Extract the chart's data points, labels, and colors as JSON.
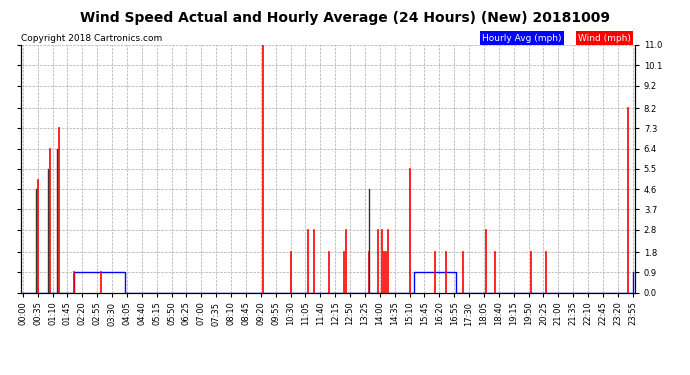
{
  "title": "Wind Speed Actual and Hourly Average (24 Hours) (New) 20181009",
  "copyright": "Copyright 2018 Cartronics.com",
  "yticks": [
    0.0,
    0.9,
    1.8,
    2.8,
    3.7,
    4.6,
    5.5,
    6.4,
    7.3,
    8.2,
    9.2,
    10.1,
    11.0
  ],
  "ymin": 0.0,
  "ymax": 11.0,
  "legend_hourly_label": "Hourly Avg (mph)",
  "legend_wind_label": "Wind (mph)",
  "hourly_color": "#0000FF",
  "wind_color": "#FF0000",
  "dark_color": "#333333",
  "background_color": "#FFFFFF",
  "grid_color": "#AAAAAA",
  "title_fontsize": 10,
  "copyright_fontsize": 6.5,
  "tick_fontsize": 6,
  "hourly_avg": [
    0,
    0,
    0,
    0,
    0,
    0,
    0,
    0,
    0,
    0,
    0,
    0,
    0,
    0,
    0,
    0,
    0,
    0,
    0,
    0,
    0,
    0,
    0,
    0,
    0.9,
    0.9,
    0.9,
    0.9,
    0.9,
    0.9,
    0.9,
    0.9,
    0.9,
    0.9,
    0.9,
    0.9,
    0.9,
    0.9,
    0.9,
    0.9,
    0.9,
    0.9,
    0.9,
    0.9,
    0.9,
    0.9,
    0.9,
    0.9,
    0,
    0,
    0,
    0,
    0,
    0,
    0,
    0,
    0,
    0,
    0,
    0,
    0,
    0,
    0,
    0,
    0,
    0,
    0,
    0,
    0,
    0,
    0,
    0,
    0,
    0,
    0,
    0,
    0,
    0,
    0,
    0,
    0,
    0,
    0,
    0,
    0,
    0,
    0,
    0,
    0,
    0,
    0,
    0,
    0,
    0,
    0,
    0,
    0,
    0,
    0,
    0,
    0,
    0,
    0,
    0,
    0,
    0,
    0,
    0,
    0,
    0,
    0,
    0,
    0,
    0,
    0,
    0,
    0,
    0,
    0,
    0,
    0,
    0,
    0,
    0,
    0,
    0,
    0,
    0,
    0,
    0,
    0,
    0,
    0,
    0,
    0,
    0,
    0,
    0,
    0,
    0,
    0,
    0,
    0,
    0,
    0,
    0,
    0,
    0,
    0,
    0,
    0,
    0,
    0,
    0,
    0,
    0,
    0,
    0,
    0,
    0,
    0,
    0,
    0,
    0,
    0,
    0,
    0,
    0,
    0,
    0,
    0,
    0,
    0,
    0,
    0,
    0,
    0,
    0,
    0,
    0,
    0,
    0,
    0,
    0,
    0.9,
    0.9,
    0.9,
    0.9,
    0.9,
    0.9,
    0.9,
    0.9,
    0.9,
    0.9,
    0.9,
    0.9,
    0.9,
    0.9,
    0.9,
    0.9,
    0.9,
    0.9,
    0.9,
    0.9,
    0,
    0,
    0,
    0,
    0,
    0,
    0,
    0,
    0,
    0,
    0,
    0,
    0,
    0,
    0,
    0,
    0,
    0,
    0,
    0,
    0,
    0,
    0,
    0,
    0,
    0,
    0,
    0,
    0,
    0,
    0,
    0,
    0,
    0,
    0,
    0,
    0,
    0,
    0,
    0,
    0,
    0,
    0,
    0,
    0,
    0,
    0,
    0,
    0,
    0,
    0,
    0,
    0,
    0,
    0,
    0,
    0,
    0,
    0,
    0,
    0,
    0,
    0,
    0,
    0,
    0,
    0,
    0,
    0,
    0,
    0,
    0,
    0,
    0,
    0,
    0,
    0,
    0,
    0,
    0,
    0,
    0,
    0,
    0.9
  ],
  "wind_actual_index": [
    7,
    13,
    17,
    24,
    37,
    113,
    126,
    134,
    137,
    144,
    151,
    152,
    163,
    167,
    169,
    170,
    171,
    172,
    182,
    194,
    199,
    207,
    218,
    222,
    239,
    246,
    285
  ],
  "wind_actual_value": [
    5.0,
    6.4,
    7.3,
    0.9,
    0.9,
    11.0,
    1.8,
    2.8,
    2.8,
    1.8,
    1.8,
    2.8,
    1.8,
    2.8,
    2.8,
    1.8,
    1.8,
    2.8,
    5.5,
    1.8,
    1.8,
    1.8,
    2.8,
    1.8,
    1.8,
    1.8,
    8.2
  ],
  "dark_spikes_index": [
    6,
    12,
    16,
    163
  ],
  "dark_spikes_value": [
    4.6,
    5.5,
    6.4,
    4.6
  ]
}
